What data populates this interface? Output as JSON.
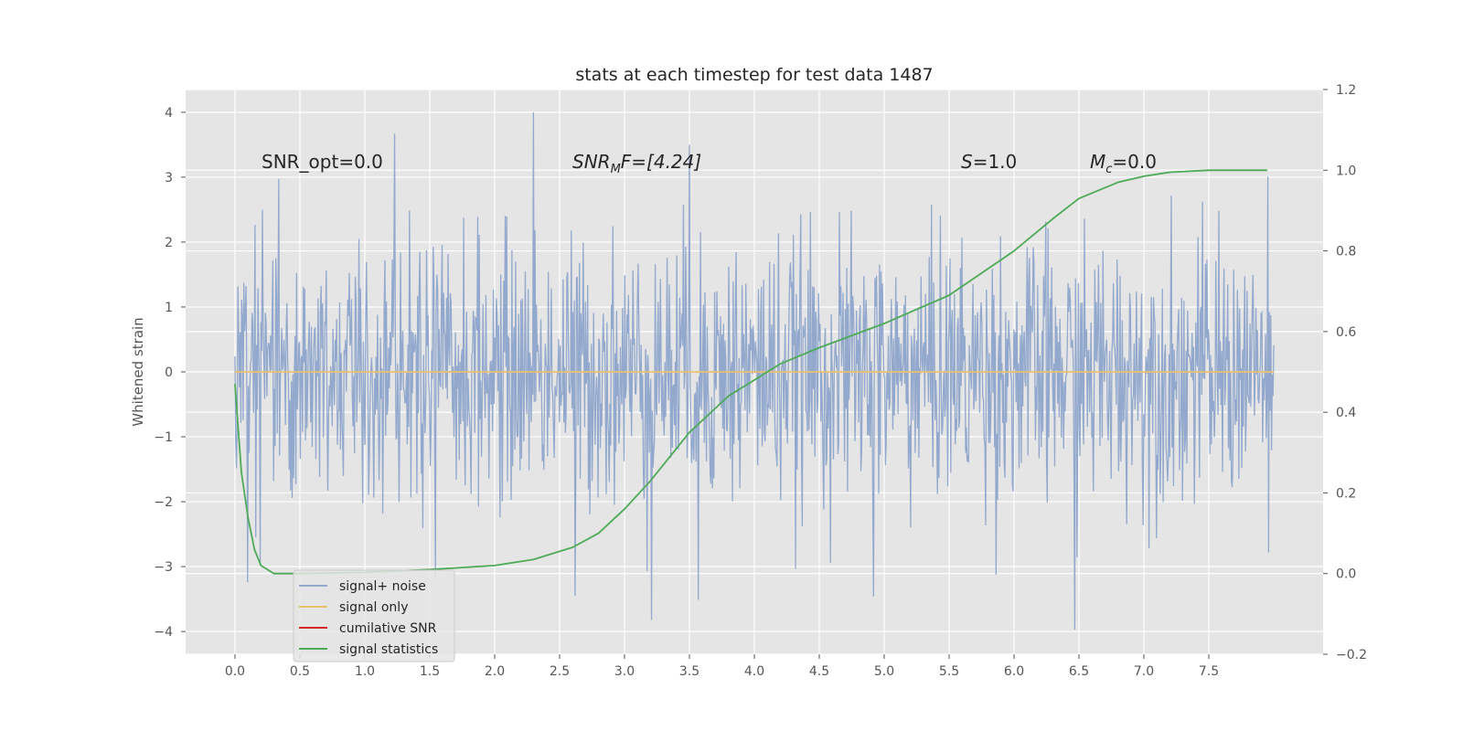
{
  "chart_data": {
    "type": "line",
    "title": "stats at each timestep for test data 1487",
    "ylabel": "Whitened strain",
    "xlabel": "",
    "xlim": [
      -0.38,
      8.38
    ],
    "ylim": [
      -4.35,
      4.35
    ],
    "ylim_right": [
      -0.2,
      1.2
    ],
    "x_ticks": [
      0.0,
      0.5,
      1.0,
      1.5,
      2.0,
      2.5,
      3.0,
      3.5,
      4.0,
      4.5,
      5.0,
      5.5,
      6.0,
      6.5,
      7.0,
      7.5
    ],
    "x_tick_labels": [
      "0.0",
      "0.5",
      "1.0",
      "1.5",
      "2.0",
      "2.5",
      "3.0",
      "3.5",
      "4.0",
      "4.5",
      "5.0",
      "5.5",
      "6.0",
      "6.5",
      "7.0",
      "7.5"
    ],
    "y_ticks": [
      -4,
      -3,
      -2,
      -1,
      0,
      1,
      2,
      3,
      4
    ],
    "y_tick_labels": [
      "−4",
      "−3",
      "−2",
      "−1",
      "0",
      "1",
      "2",
      "3",
      "4"
    ],
    "y_right_ticks": [
      -0.2,
      0.0,
      0.2,
      0.4,
      0.6,
      0.8,
      1.0,
      1.2
    ],
    "y_right_tick_labels": [
      "−0.2",
      "0.0",
      "0.2",
      "0.4",
      "0.6",
      "0.8",
      "1.0",
      "1.2"
    ],
    "grid": true,
    "legend_position": "lower-left",
    "annotations": {
      "snr_opt": "SNR_opt=0.0",
      "snr_mf_main": "SNR",
      "snr_mf_sub": "M",
      "snr_mf_tail": "F=[4.24]",
      "s_symbol": "S",
      "s_value": "=1.0",
      "mc_main": "M",
      "mc_sub": "c",
      "mc_value": "=0.0"
    },
    "series": [
      {
        "name": "signal+ noise",
        "color": "#92a8cd",
        "axis": "left",
        "x_range": [
          0.0,
          8.0
        ],
        "samples": 1400,
        "noise_sigma": 1.0,
        "peaks": [
          {
            "x": 2.3,
            "y": 4.0
          },
          {
            "x": 1.23,
            "y": 3.67
          },
          {
            "x": 3.5,
            "y": 3.5
          },
          {
            "x": 6.47,
            "y": -3.97
          },
          {
            "x": 3.21,
            "y": -3.82
          },
          {
            "x": 3.57,
            "y": -3.51
          },
          {
            "x": 4.92,
            "y": -3.46
          },
          {
            "x": 2.62,
            "y": -3.45
          }
        ]
      },
      {
        "name": "signal only",
        "color": "#ecc06f",
        "axis": "left",
        "x": [
          0.0,
          8.0
        ],
        "y": [
          0.0,
          0.0
        ]
      },
      {
        "name": "cumilative SNR",
        "color": "#d62728",
        "axis": "right",
        "x": [],
        "y": []
      },
      {
        "name": "signal statistics",
        "color": "#4daa57",
        "axis": "right",
        "x": [
          0.0,
          0.05,
          0.1,
          0.15,
          0.2,
          0.3,
          0.5,
          1.0,
          1.5,
          2.0,
          2.3,
          2.6,
          2.8,
          3.0,
          3.2,
          3.5,
          3.8,
          4.0,
          4.2,
          4.5,
          5.0,
          5.5,
          6.0,
          6.3,
          6.5,
          6.8,
          7.0,
          7.2,
          7.5,
          7.8,
          7.95
        ],
        "y": [
          0.47,
          0.25,
          0.14,
          0.06,
          0.02,
          0.0,
          0.0,
          0.003,
          0.01,
          0.02,
          0.035,
          0.065,
          0.1,
          0.16,
          0.23,
          0.35,
          0.44,
          0.48,
          0.52,
          0.56,
          0.62,
          0.69,
          0.8,
          0.88,
          0.93,
          0.97,
          0.985,
          0.995,
          1.0,
          1.0,
          1.0
        ]
      }
    ]
  }
}
